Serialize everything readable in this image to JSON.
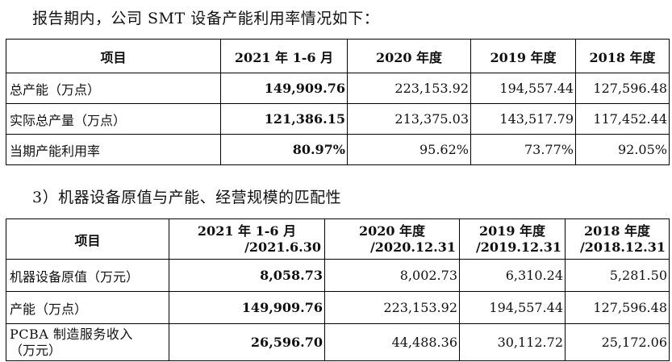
{
  "intro_text": "报告期内，公司 SMT 设备产能利用率情况如下：",
  "table1": {
    "headers": [
      "项目",
      "2021 年 1-6 月",
      "2020 年度",
      "2019 年度",
      "2018 年度"
    ],
    "rows": [
      {
        "label": "总产能（万点）",
        "values": [
          "149,909.76",
          "223,153.92",
          "194,557.44",
          "127,596.48"
        ]
      },
      {
        "label": "实际总产量（万点）",
        "values": [
          "121,386.15",
          "213,375.03",
          "143,517.79",
          "117,452.44"
        ]
      },
      {
        "label": "当期产能利用率",
        "values": [
          "80.97%",
          "95.62%",
          "73.77%",
          "92.05%"
        ]
      }
    ]
  },
  "section_title": "3）机器设备原值与产能、经营规模的匹配性",
  "table2": {
    "headers": [
      {
        "line1": "项目",
        "line2": ""
      },
      {
        "line1": "2021 年 1-6 月",
        "line2": "/2021.6.30"
      },
      {
        "line1": "2020 年度",
        "line2": "/2020.12.31"
      },
      {
        "line1": "2019 年度",
        "line2": "/2019.12.31"
      },
      {
        "line1": "2018 年度",
        "line2": "/2018.12.31"
      }
    ],
    "rows": [
      {
        "label": "机器设备原值（万元）",
        "values": [
          "8,058.73",
          "8,002.73",
          "6,310.24",
          "5,281.50"
        ]
      },
      {
        "label": "产能（万点）",
        "values": [
          "149,909.76",
          "223,153.92",
          "194,557.44",
          "127,596.48"
        ]
      },
      {
        "label_line1": "PCBA 制造服务收入",
        "label_line2": "（万元）",
        "values": [
          "26,596.70",
          "44,488.36",
          "30,112.72",
          "25,172.06"
        ]
      }
    ]
  }
}
